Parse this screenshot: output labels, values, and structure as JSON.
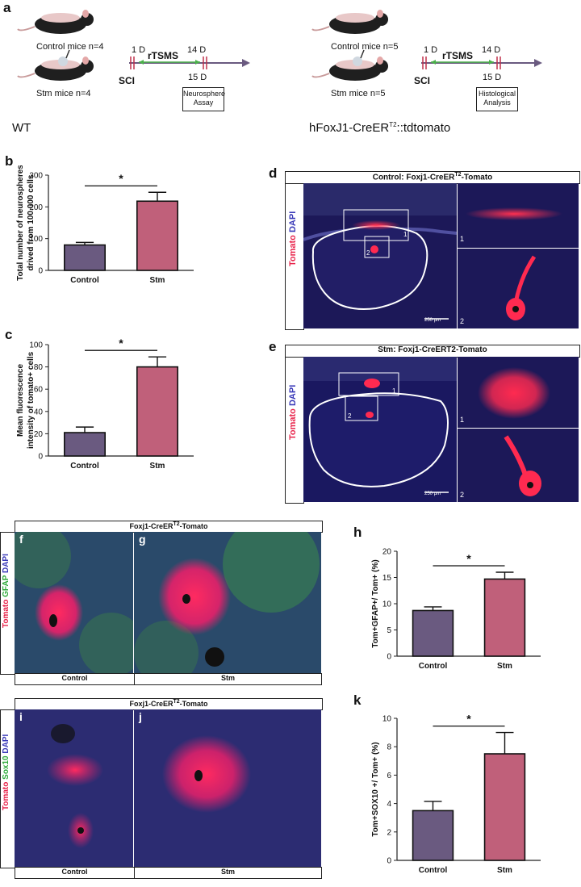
{
  "panels": {
    "a": "a",
    "b": "b",
    "c": "c",
    "d": "d",
    "e": "e",
    "f": "f",
    "g": "g",
    "h": "h",
    "i": "i",
    "j": "j",
    "k": "k"
  },
  "timeline_left": {
    "control_mice": "Control mice n=4",
    "stm_mice": "Stm mice n=4",
    "day1": "1 D",
    "day14": "14 D",
    "day15": "15 D",
    "treatment": "rTSMS",
    "injury": "SCI",
    "assay": "Neurosphere Assay",
    "strain": "WT"
  },
  "timeline_right": {
    "control_mice": "Control mice n=5",
    "stm_mice": "Stm mice n=5",
    "day1": "1 D",
    "day14": "14 D",
    "day15": "15 D",
    "treatment": "rTSMS",
    "injury": "SCI",
    "assay": "Histological Analysis",
    "strain_main": "hFoxJ1-CreER",
    "strain_sup": "T2",
    "strain_tail": "::tdtomato"
  },
  "micro": {
    "d_title": "Control: Foxj1-CreER",
    "d_title_sup": "T2",
    "d_title_tail": "-Tomato",
    "e_title": "Stm: Foxj1-CreERT2-Tomato",
    "stain_tomato": "Tomato",
    "stain_dapi": "DAPI",
    "stain_gfap": "GFAP",
    "stain_sox10": "Sox10",
    "scale_250": "250 µm",
    "inset1": "1",
    "inset2": "2",
    "fg_title": "Foxj1-CreER",
    "fg_title_sup": "T2",
    "fg_title_tail": "-Tomato",
    "control": "Control",
    "stm": "Stm",
    "colors": {
      "tomato": "#e8234a",
      "dapi": "#3a3ab8",
      "gfap": "#2eaa3a",
      "bg": "#1a1650"
    }
  },
  "chart_data": [
    {
      "type": "bar",
      "panel": "b",
      "categories": [
        "Control",
        "Stm"
      ],
      "values": [
        80,
        218
      ],
      "errors": [
        8,
        28
      ],
      "ylabel": "Total number of neurospheres drived from 100.000 cells",
      "ylim": [
        0,
        300
      ],
      "yticks": [
        0,
        100,
        200,
        300
      ],
      "significance": "*",
      "colors": [
        "#6a5a80",
        "#c0607a"
      ]
    },
    {
      "type": "bar",
      "panel": "c",
      "categories": [
        "Control",
        "Stm"
      ],
      "values": [
        21,
        80
      ],
      "errors": [
        5,
        9
      ],
      "ylabel": "Mean fluorescence intensity of tomato+ cells",
      "ylim": [
        0,
        100
      ],
      "yticks": [
        0,
        20,
        40,
        60,
        80,
        100
      ],
      "significance": "*",
      "colors": [
        "#6a5a80",
        "#c0607a"
      ]
    },
    {
      "type": "bar",
      "panel": "h",
      "categories": [
        "Control",
        "Stm"
      ],
      "values": [
        8.7,
        14.7
      ],
      "errors": [
        0.7,
        1.3
      ],
      "ylabel": "Tom+GFAP+/ Tom+ (%)",
      "ylim": [
        0,
        20
      ],
      "yticks": [
        0,
        5,
        10,
        15,
        20
      ],
      "significance": "*",
      "colors": [
        "#6a5a80",
        "#c0607a"
      ]
    },
    {
      "type": "bar",
      "panel": "k",
      "categories": [
        "Control",
        "Stm"
      ],
      "values": [
        3.5,
        7.5
      ],
      "errors": [
        0.65,
        1.5
      ],
      "ylabel": "Tom+SOX10 +/ Tom+ (%)",
      "ylim": [
        0,
        10
      ],
      "yticks": [
        0,
        2,
        4,
        6,
        8,
        10
      ],
      "significance": "*",
      "colors": [
        "#6a5a80",
        "#c0607a"
      ]
    }
  ]
}
